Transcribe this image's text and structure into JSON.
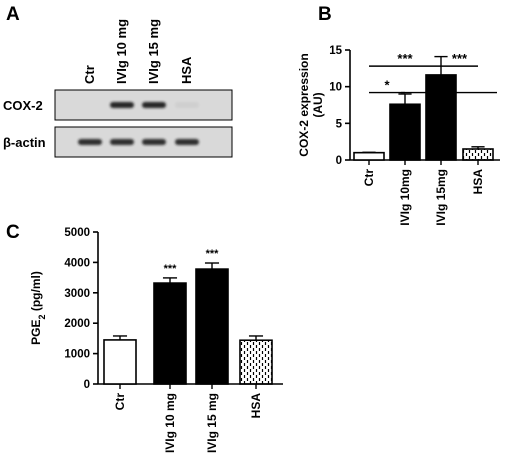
{
  "panel_a": {
    "letter": "A",
    "lanes": [
      "Ctr",
      "IVIg 10 mg",
      "IVIg 15 mg",
      "HSA"
    ],
    "blots": [
      {
        "label": "COX-2",
        "band_intensity": [
          0.03,
          0.95,
          0.95,
          0.05
        ]
      },
      {
        "label": "β-actin",
        "band_intensity": [
          0.9,
          0.9,
          0.9,
          0.9
        ]
      }
    ]
  },
  "chart_data": [
    {
      "panel": "B",
      "type": "bar",
      "ylabel_line1": "COX-2 expression",
      "ylabel_line2": "(AU)",
      "categories": [
        "Ctr",
        "IVIg 10mg",
        "IVIg 15mg",
        "HSA"
      ],
      "values": [
        1.0,
        7.6,
        11.6,
        1.5
      ],
      "errors": [
        0.05,
        1.4,
        2.5,
        0.3
      ],
      "fills": [
        "white",
        "black",
        "black",
        "dashed"
      ],
      "ylim": [
        0,
        15
      ],
      "yticks": [
        "0",
        "5",
        "10",
        "15"
      ],
      "comparisons": [
        {
          "from": 0,
          "to": 1,
          "label": "*"
        },
        {
          "from": 1,
          "to": 2,
          "label": "*"
        },
        {
          "from": 0,
          "to": 2,
          "label": "***"
        },
        {
          "from": 2,
          "to": 3,
          "label": "***"
        }
      ]
    },
    {
      "panel": "C",
      "type": "bar",
      "ylabel_main": "PGE",
      "ylabel_sub": "2",
      "ylabel_unit": " (pg/ml)",
      "categories": [
        "Ctr",
        "IVIg 10 mg",
        "IVIg 15 mg",
        "HSA"
      ],
      "values": [
        1450,
        3320,
        3780,
        1440
      ],
      "errors": [
        130,
        170,
        200,
        140
      ],
      "fills": [
        "white",
        "black",
        "black",
        "dashed"
      ],
      "ylim": [
        0,
        5000
      ],
      "yticks": [
        "0",
        "1000",
        "2000",
        "3000",
        "4000",
        "5000"
      ],
      "significance": [
        "",
        "***",
        "***",
        ""
      ]
    }
  ],
  "colors": {
    "ink": "#000000",
    "blot_bg": "#d9d9d9",
    "band": "#1a1a1a"
  }
}
